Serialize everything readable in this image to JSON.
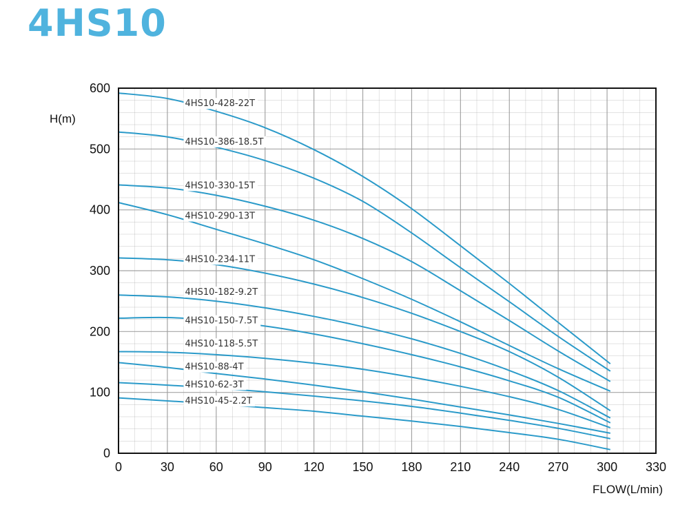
{
  "page": {
    "title": "4HS10",
    "title_color": "#4fb3de",
    "curve_color": "#2a9ac9",
    "grid_color": "#9a9a9a"
  },
  "chart_data": {
    "type": "line",
    "title": "4HS10",
    "xlabel": "FLOW(L/min)",
    "ylabel": "H(m)",
    "xlim": [
      0,
      330
    ],
    "ylim": [
      0,
      600
    ],
    "x_ticks": [
      0,
      30,
      60,
      90,
      120,
      150,
      180,
      210,
      240,
      270,
      300,
      330
    ],
    "y_ticks": [
      0,
      100,
      200,
      300,
      400,
      500,
      600
    ],
    "grid": true,
    "minor_grid": {
      "x_step": 10,
      "y_step": 20
    },
    "x": [
      0,
      30,
      60,
      90,
      120,
      150,
      180,
      210,
      240,
      270,
      302
    ],
    "series": [
      {
        "name": "4HS10-428-22T",
        "label_x": 40,
        "label_y": 576,
        "values": [
          592,
          583,
          562,
          535,
          499,
          455,
          402,
          341,
          279,
          215,
          147
        ]
      },
      {
        "name": "4HS10-386-18.5T",
        "label_x": 40,
        "label_y": 513,
        "values": [
          528,
          520,
          503,
          481,
          452,
          414,
          362,
          305,
          249,
          192,
          135
        ]
      },
      {
        "name": "4HS10-330-15T",
        "label_x": 40,
        "label_y": 441,
        "values": [
          441,
          436,
          424,
          406,
          383,
          353,
          315,
          267,
          218,
          168,
          118
        ]
      },
      {
        "name": "4HS10-290-13T",
        "label_x": 40,
        "label_y": 391,
        "values": [
          412,
          392,
          368,
          344,
          318,
          287,
          253,
          216,
          177,
          139,
          102
        ]
      },
      {
        "name": "4HS10-234-11T",
        "label_x": 40,
        "label_y": 320,
        "values": [
          321,
          318,
          310,
          296,
          278,
          256,
          230,
          200,
          167,
          125,
          70
        ]
      },
      {
        "name": "4HS10-182-9.2T",
        "label_x": 40,
        "label_y": 266,
        "values": [
          260,
          257,
          250,
          239,
          225,
          208,
          188,
          164,
          136,
          103,
          58
        ]
      },
      {
        "name": "4HS10-150-7.5T",
        "label_x": 40,
        "label_y": 219,
        "values": [
          222,
          223,
          218,
          209,
          196,
          180,
          162,
          142,
          119,
          92,
          50
        ]
      },
      {
        "name": "4HS10-118-5.5T",
        "label_x": 40,
        "label_y": 181,
        "values": [
          167,
          166,
          162,
          156,
          148,
          138,
          125,
          110,
          93,
          72,
          42
        ]
      },
      {
        "name": "4HS10-88-4T",
        "label_x": 40,
        "label_y": 143,
        "values": [
          149,
          141,
          131,
          122,
          112,
          101,
          89,
          76,
          63,
          49,
          33
        ]
      },
      {
        "name": "4HS10-62-3T",
        "label_x": 40,
        "label_y": 114,
        "values": [
          116,
          112,
          107,
          101,
          94,
          86,
          77,
          66,
          54,
          41,
          24
        ]
      },
      {
        "name": "4HS10-45-2.2T",
        "label_x": 40,
        "label_y": 87,
        "values": [
          91,
          86,
          81,
          75,
          69,
          61,
          53,
          44,
          34,
          23,
          6
        ]
      }
    ]
  }
}
